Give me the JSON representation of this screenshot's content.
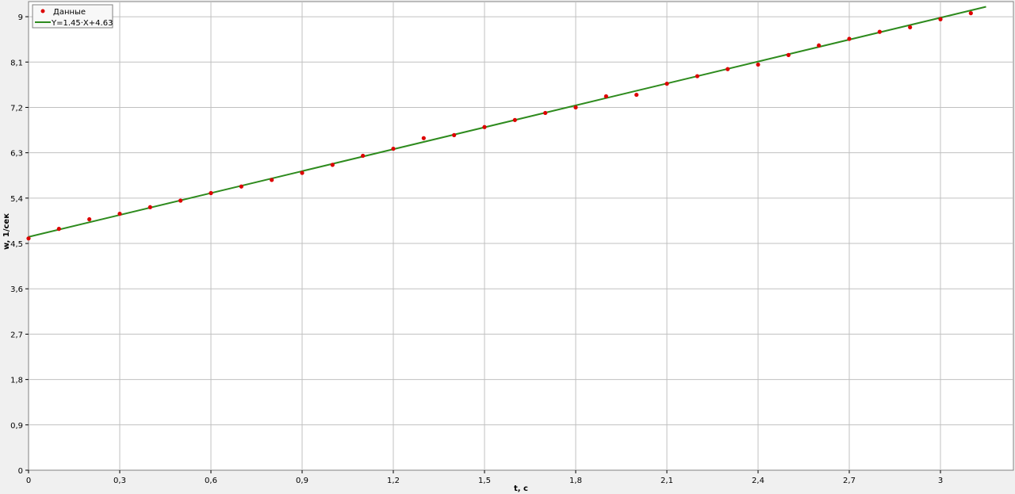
{
  "chart_data": {
    "type": "scatter",
    "xlabel": "t, c",
    "ylabel": "w, 1/сек",
    "xlim": [
      0,
      3.24
    ],
    "ylim": [
      0,
      9.3
    ],
    "x_ticks": [
      "0",
      "0,3",
      "0,6",
      "0,9",
      "1,2",
      "1,5",
      "1,8",
      "2,1",
      "2,4",
      "2,7",
      "3"
    ],
    "x_tick_values": [
      0,
      0.3,
      0.6,
      0.9,
      1.2,
      1.5,
      1.8,
      2.1,
      2.4,
      2.7,
      3.0
    ],
    "y_ticks": [
      "0",
      "0,9",
      "1,8",
      "2,7",
      "3,6",
      "4,5",
      "5,4",
      "6,3",
      "7,2",
      "8,1",
      "9"
    ],
    "y_tick_values": [
      0,
      0.9,
      1.8,
      2.7,
      3.6,
      4.5,
      5.4,
      6.3,
      7.2,
      8.1,
      9.0
    ],
    "grid": true,
    "legend_position": "top-left",
    "series": [
      {
        "name": "Данные",
        "kind": "points",
        "color": "#dd0000",
        "x": [
          0,
          0.1,
          0.2,
          0.3,
          0.4,
          0.5,
          0.6,
          0.7,
          0.8,
          0.9,
          1.0,
          1.1,
          1.2,
          1.3,
          1.4,
          1.5,
          1.6,
          1.7,
          1.8,
          1.9,
          2.0,
          2.1,
          2.2,
          2.3,
          2.4,
          2.5,
          2.6,
          2.7,
          2.8,
          2.9,
          3.0,
          3.1
        ],
        "y": [
          4.6,
          4.79,
          4.98,
          5.09,
          5.22,
          5.35,
          5.5,
          5.63,
          5.76,
          5.9,
          6.06,
          6.24,
          6.38,
          6.59,
          6.65,
          6.81,
          6.95,
          7.09,
          7.2,
          7.42,
          7.45,
          7.67,
          7.82,
          7.96,
          8.05,
          8.24,
          8.43,
          8.56,
          8.7,
          8.79,
          8.95,
          9.07
        ]
      },
      {
        "name": "Y=1.45·X+4.63",
        "kind": "line",
        "color": "#2e8b1e",
        "slope": 1.45,
        "intercept": 4.63,
        "x_range": [
          0,
          3.15
        ]
      }
    ]
  }
}
